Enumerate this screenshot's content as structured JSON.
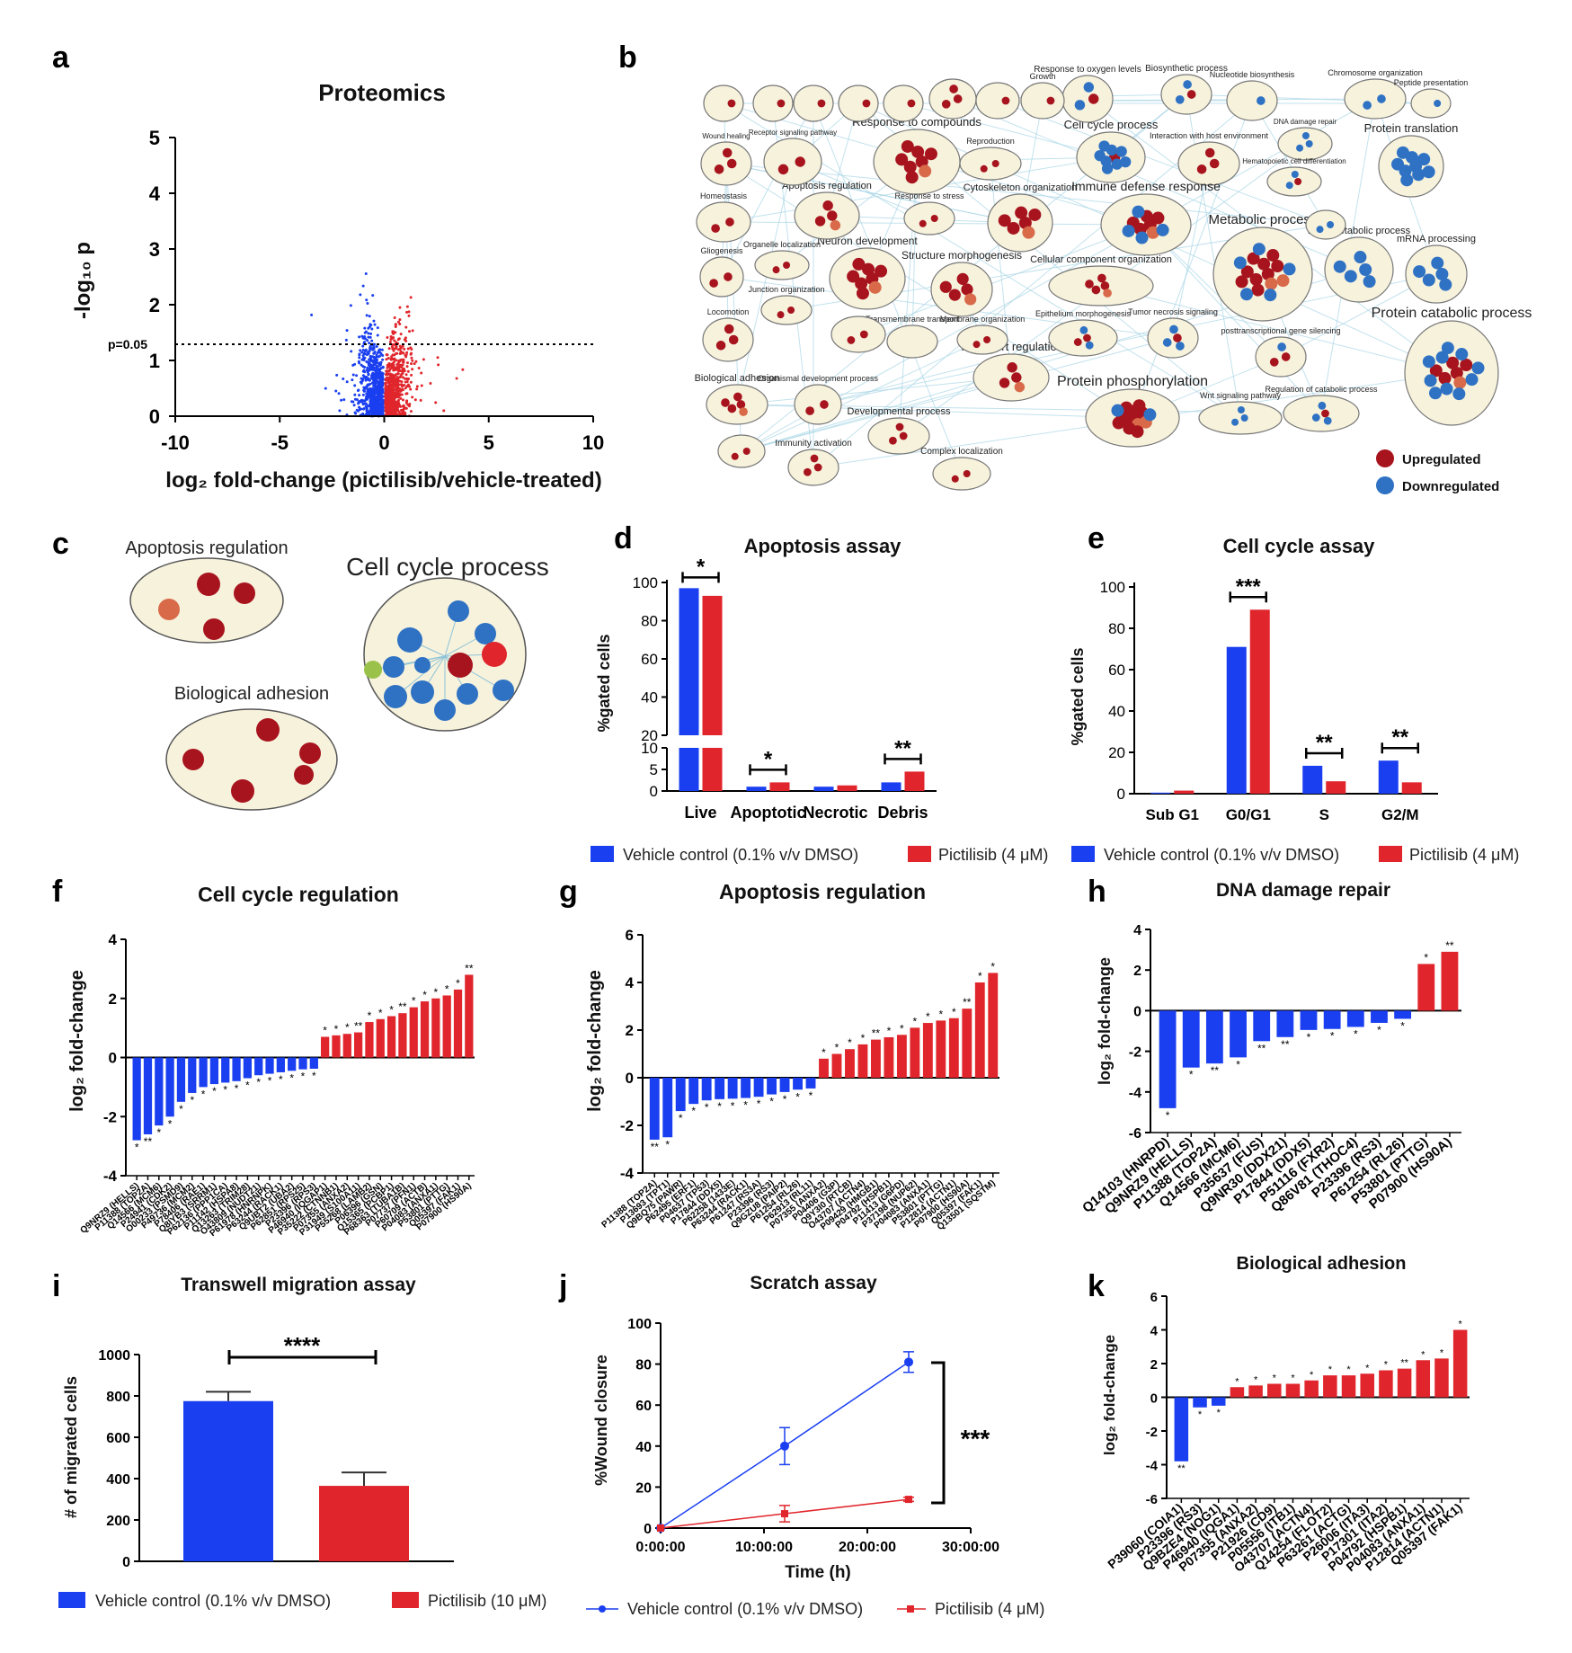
{
  "colors": {
    "blue": "#1a3ff0",
    "red": "#e0262c",
    "dark_red": "#a8141e",
    "net_blue": "#2f72c4",
    "node_fill": "#f6f2dc"
  },
  "panels": {
    "a": "a",
    "b": "b",
    "c": "c",
    "d": "d",
    "e": "e",
    "f": "f",
    "g": "g",
    "h": "h",
    "i": "i",
    "j": "j",
    "k": "k"
  },
  "significance": {
    "one": "*",
    "two": "**",
    "three": "***",
    "four": "****"
  },
  "network_labels": [
    "Response to compounds",
    "Cell cycle process",
    "Interaction with host environment",
    "Protein translation",
    "DNA damage repair",
    "Immune defense response",
    "Hematopoietic cell differentiation",
    "Metabolic process",
    "RNA metabolic process",
    "mRNA processing",
    "Neuron development",
    "Structure morphogenesis",
    "Cytoskeleton organization",
    "Cellular component organization",
    "Protein catabolic process",
    "Transport regulation",
    "Protein phosphorylation",
    "Tumor necrosis signaling",
    "Epithelium morphogenesis",
    "Wnt signaling pathway",
    "Regulation of catabolic process",
    "Developmental process",
    "Complex localization",
    "Immunity activation",
    "Transmembrane transport",
    "Biological adhesion",
    "Apoptosis regulation",
    "Wound healing",
    "Receptor signaling pathway",
    "Response to oxygen levels",
    "Biosynthetic process",
    "Chromosome organization",
    "Peptide presentation",
    "Homeostasis",
    "Locomotion",
    "Gliogenesis",
    "Organelle localization",
    "Response to stress",
    "Reproduction",
    "Growth",
    "Membrane organization",
    "Organismal development process",
    "Junction organization",
    "posttranscriptional gene silencing",
    "Nucleotide biosynthesis"
  ],
  "legend_b": {
    "up": "Upregulated",
    "down": "Downregulated"
  },
  "panel_c": {
    "apoptosis": "Apoptosis regulation",
    "cellcycle": "Cell cycle process",
    "adhesion": "Biological adhesion"
  },
  "legend_de": {
    "vehicle": "Vehicle control (0.1% v/v DMSO)",
    "drug": "Pictilisib (4 μM)"
  },
  "legend_i": {
    "vehicle": "Vehicle control (0.1% v/v DMSO)",
    "drug": "Pictilisib (10 μM)"
  },
  "legend_j": {
    "vehicle": "Vehicle control (0.1% v/v DMSO)",
    "drug": "Pictilisib (4 μM)"
  },
  "chart_data": [
    {
      "id": "a",
      "type": "scatter",
      "title": "Proteomics",
      "xlabel": "log₂ fold-change (pictilisib/vehicle-treated)",
      "ylabel": "-log₁₀ p",
      "xlim": [
        -10,
        10
      ],
      "ylim": [
        0,
        5
      ],
      "xticks": [
        "-10",
        "-5",
        "0",
        "5",
        "10"
      ],
      "yticks": [
        "0",
        "1",
        "2",
        "3",
        "4",
        "5"
      ],
      "threshold_label": "p=0.05",
      "threshold": 1.3,
      "series": [
        {
          "name": "Downregulated",
          "color": "blue"
        },
        {
          "name": "Upregulated",
          "color": "red"
        }
      ]
    },
    {
      "id": "d",
      "type": "bar",
      "title": "Apoptosis assay",
      "ylabel": "%gated cells",
      "categories": [
        "Live",
        "Apoptotic",
        "Necrotic",
        "Debris"
      ],
      "series": [
        {
          "name": "Vehicle control (0.1% v/v DMSO)",
          "values": [
            97,
            1,
            1,
            2
          ]
        },
        {
          "name": "Pictilisib (4 μM)",
          "values": [
            93,
            2,
            1.3,
            4.5
          ]
        }
      ],
      "yticks_upper": [
        "20",
        "40",
        "60",
        "80",
        "100"
      ],
      "yticks_lower": [
        "0",
        "5",
        "10"
      ],
      "sig": [
        "*",
        "*",
        "",
        "**"
      ]
    },
    {
      "id": "e",
      "type": "bar",
      "title": "Cell cycle assay",
      "ylabel": "%gated cells",
      "categories": [
        "Sub G1",
        "G0/G1",
        "S",
        "G2/M"
      ],
      "series": [
        {
          "name": "Vehicle control (0.1% v/v DMSO)",
          "values": [
            0.5,
            71,
            13.5,
            16
          ]
        },
        {
          "name": "Pictilisib (4 μM)",
          "values": [
            1.5,
            89,
            6,
            5.5
          ]
        }
      ],
      "ylim": [
        0,
        100
      ],
      "yticks": [
        "0",
        "20",
        "40",
        "60",
        "80",
        "100"
      ],
      "sig": [
        "",
        "***",
        "**",
        "**"
      ]
    },
    {
      "id": "f",
      "type": "bar",
      "title": "Cell cycle regulation",
      "ylabel": "log₂ fold-change",
      "ylim": [
        -4,
        4
      ],
      "yticks": [
        "-4",
        "-2",
        "0",
        "2",
        "4"
      ],
      "categories": [
        "Q9NRZ9 (HELLS)",
        "P11388 (TOP2A)",
        "Q14566 (MCM6)",
        "P24941 (CDK2)",
        "O00233 (PSMD9)",
        "P49736 (MCM2)",
        "P78406 (RAE1)",
        "Q8IYB3 (SRRM1)",
        "P62136 (PPP1CA)",
        "P11142 (HSPA8)",
        "Q13263 (TRIM28)",
        "O43809 (NUDT21)",
        "P61978 (HNRNPK)",
        "P63244 (RACK1)",
        "Q9UBT2 (UBA2)",
        "P62851 (RPS25)",
        "P23396 (RPS3)",
        "P46940 (IQGAP1)",
        "P35222 (CTNNB1)",
        "P07355 (ANXA2)",
        "P31949 (S100A11)",
        "P55268 (LAMB2)",
        "P06396 (GSN)",
        "Q15365 (PCBP1)",
        "P68363 (TUBA1B)",
        "P07737 (PFN1)",
        "P60709 (ACTB)",
        "P04083 (ANXA1)",
        "P53801 (PTTG)",
        "Q05397 (FAK1)",
        "P07900 (HS90A)"
      ],
      "values": [
        -2.8,
        -2.6,
        -2.3,
        -2.0,
        -1.5,
        -1.2,
        -1.0,
        -0.9,
        -0.85,
        -0.8,
        -0.7,
        -0.6,
        -0.55,
        -0.5,
        -0.45,
        -0.4,
        -0.38,
        0.7,
        0.75,
        0.8,
        0.85,
        1.2,
        1.3,
        1.4,
        1.5,
        1.7,
        1.9,
        2.0,
        2.1,
        2.3,
        2.8
      ],
      "sig": [
        "*",
        "**",
        "*",
        "*",
        "*",
        "*",
        "*",
        "*",
        "*",
        "*",
        "*",
        "*",
        "*",
        "*",
        "*",
        "*",
        "*",
        "*",
        "*",
        "*",
        "**",
        "*",
        "*",
        "*",
        "**",
        "*",
        "*",
        "*",
        "*",
        "*",
        "**"
      ]
    },
    {
      "id": "g",
      "type": "bar",
      "title": "Apoptosis regulation",
      "ylabel": "log₂ fold-change",
      "ylim": [
        -4,
        6
      ],
      "yticks": [
        "-4",
        "-2",
        "0",
        "2",
        "4",
        "6"
      ],
      "categories": [
        "P11388 (TOP2A)",
        "P13693 (TPT1)",
        "Q9BQ75 (PAWR)",
        "P62495 (ERF1)",
        "P04637 (TP53)",
        "P17844 (DDX5)",
        "P62258 (1433E)",
        "P63244 (RACK1)",
        "P61247 (RS3A)",
        "P23396 (RS3)",
        "Q9GZU8 (PAIP2)",
        "P61254 (RL26)",
        "P62913 (RL11)",
        "P07355 (ANXA2)",
        "P04406 (G3P)",
        "Q9Y3I0 (RTCB)",
        "O43707 (ACTN4)",
        "P09429 (HMGB1)",
        "P04792 (HSPB1)",
        "P11413 (G6PD)",
        "P37198 (NUP62)",
        "P04083 (ANXA1)",
        "P53801 (PTTG)",
        "P12814 (ACTN1)",
        "P07900 (HS90A)",
        "Q05397 (FAK1)",
        "Q13501 (SQSTM)"
      ],
      "values": [
        -2.6,
        -2.5,
        -1.4,
        -1.1,
        -0.95,
        -0.9,
        -0.88,
        -0.85,
        -0.8,
        -0.7,
        -0.6,
        -0.5,
        -0.45,
        0.8,
        1.0,
        1.2,
        1.4,
        1.6,
        1.7,
        1.8,
        2.1,
        2.3,
        2.4,
        2.5,
        2.9,
        4.0,
        4.4
      ],
      "sig": [
        "**",
        "*",
        "*",
        "*",
        "*",
        "*",
        "*",
        "*",
        "*",
        "*",
        "*",
        "*",
        "*",
        "*",
        "*",
        "*",
        "*",
        "**",
        "*",
        "*",
        "*",
        "*",
        "*",
        "*",
        "**",
        "*",
        "*"
      ]
    },
    {
      "id": "h",
      "type": "bar",
      "title": "DNA damage repair",
      "ylabel": "log₂ fold-change",
      "ylim": [
        -6,
        4
      ],
      "yticks": [
        "-6",
        "-4",
        "-2",
        "0",
        "2",
        "4"
      ],
      "categories": [
        "Q14103 (HNRPD)",
        "Q9NRZ9 (HELLS)",
        "P11388 (TOP2A)",
        "Q14566 (MCM6)",
        "P35637 (FUS)",
        "Q9NR30 (DDX21)",
        "P17844 (DDX5)",
        "P51116 (FXR2)",
        "Q86V81 (THOC4)",
        "P23396 (RS3)",
        "P61254 (RL26)",
        "P53801 (PTTG)",
        "P07900 (HS90A)"
      ],
      "values": [
        -4.8,
        -2.8,
        -2.6,
        -2.3,
        -1.5,
        -1.3,
        -0.95,
        -0.9,
        -0.8,
        -0.6,
        -0.4,
        2.3,
        2.9
      ],
      "sig": [
        "*",
        "*",
        "**",
        "*",
        "**",
        "**",
        "*",
        "*",
        "*",
        "*",
        "*",
        "*",
        "**"
      ]
    },
    {
      "id": "i",
      "type": "bar",
      "title": "Transwell migration assay",
      "ylabel": "# of migrated cells",
      "categories": [
        "Vehicle control (0.1% v/v DMSO)",
        "Pictilisib (10 μM)"
      ],
      "values": [
        775,
        365
      ],
      "errors": [
        45,
        65
      ],
      "ylim": [
        0,
        1000
      ],
      "yticks": [
        "0",
        "200",
        "400",
        "600",
        "800",
        "1000"
      ],
      "sig": "****"
    },
    {
      "id": "j",
      "type": "line",
      "title": "Scratch assay",
      "xlabel": "Time (h)",
      "ylabel": "%Wound closure",
      "xticks": [
        "0:00:00",
        "10:00:00",
        "20:00:00",
        "30:00:00"
      ],
      "xlim": [
        0,
        30
      ],
      "ylim": [
        0,
        100
      ],
      "yticks": [
        "0",
        "20",
        "40",
        "60",
        "80",
        "100"
      ],
      "series": [
        {
          "name": "Vehicle control (0.1% v/v DMSO)",
          "x": [
            0,
            12,
            24
          ],
          "y": [
            0,
            40,
            81
          ],
          "err": [
            0,
            9,
            5
          ]
        },
        {
          "name": "Pictilisib (4 μM)",
          "x": [
            0,
            12,
            24
          ],
          "y": [
            0,
            7,
            14
          ],
          "err": [
            0,
            4,
            1
          ]
        }
      ],
      "sig": "***"
    },
    {
      "id": "k",
      "type": "bar",
      "title": "Biological adhesion",
      "ylabel": "log₂ fold-change",
      "ylim": [
        -6,
        6
      ],
      "yticks": [
        "-6",
        "-4",
        "-2",
        "0",
        "2",
        "4",
        "6"
      ],
      "categories": [
        "P39060 (COIA1)",
        "P23396 (RS3)",
        "Q9BZE4 (NOG1)",
        "P46940 (IQGA1)",
        "P07355 (ANXA2)",
        "P21926 (CD9)",
        "P05556 (ITB1)",
        "O43707 (ACTN4)",
        "Q14254 (FLOT2)",
        "P63261 (ACTG)",
        "P26006 (ITA3)",
        "P17301 (ITA2)",
        "P04792 (HSPB1)",
        "P04083 (ANXA1)",
        "P12814 (ACTN1)",
        "Q05397 (FAK1)"
      ],
      "values": [
        -3.8,
        -0.6,
        -0.5,
        0.6,
        0.7,
        0.8,
        0.8,
        1.0,
        1.3,
        1.3,
        1.4,
        1.6,
        1.7,
        2.2,
        2.3,
        4.0
      ],
      "sig": [
        "**",
        "*",
        "*",
        "*",
        "*",
        "*",
        "*",
        "*",
        "*",
        "*",
        "*",
        "*",
        "**",
        "*",
        "*",
        "*"
      ]
    }
  ]
}
